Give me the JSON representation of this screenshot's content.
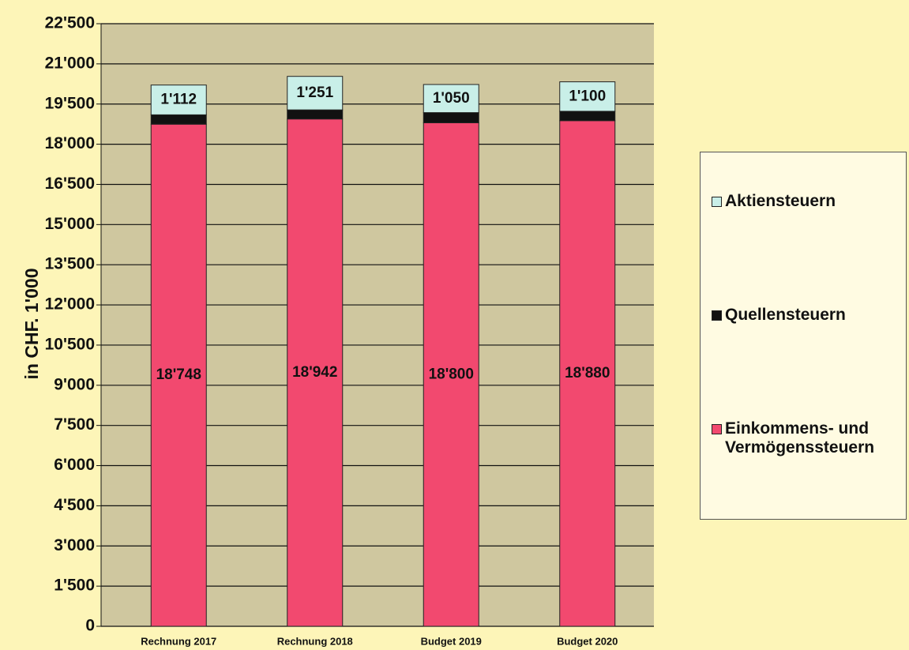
{
  "chart_data": {
    "type": "stacked_bar",
    "y_label": "in CHF. 1'000",
    "categories": [
      "Rechnung 2017",
      "Rechnung 2018",
      "Budget 2019",
      "Budget 2020"
    ],
    "series": [
      {
        "name": "Einkommens- und Vermögenssteuern",
        "color": "#f2496f",
        "values": [
          18748,
          18942,
          18800,
          18880
        ],
        "value_labels": [
          "18'748",
          "18'942",
          "18'800",
          "18'880"
        ]
      },
      {
        "name": "Quellensteuern",
        "color": "#111111",
        "values": [
          350,
          340,
          380,
          350
        ]
      },
      {
        "name": "Aktiensteuern",
        "color": "#c9efe8",
        "values": [
          1112,
          1251,
          1050,
          1100
        ],
        "value_labels": [
          "1'112",
          "1'251",
          "1'050",
          "1'100"
        ]
      }
    ],
    "ylim": [
      0,
      22500
    ],
    "yticks": [
      0,
      {
        "value": 1500,
        "label": "1'500"
      },
      {
        "value": 3000,
        "label": "3'000"
      },
      {
        "value": 4500,
        "label": "4'500"
      },
      {
        "value": 6000,
        "label": "6'000"
      },
      {
        "value": 7500,
        "label": "7'500"
      },
      {
        "value": 9000,
        "label": "9'000"
      },
      {
        "value": 10500,
        "label": "10'500"
      },
      {
        "value": 12000,
        "label": "12'000"
      },
      {
        "value": 13500,
        "label": "13'500"
      },
      {
        "value": 15000,
        "label": "15'000"
      },
      {
        "value": 16500,
        "label": "16'500"
      },
      {
        "value": 18000,
        "label": "18'000"
      },
      {
        "value": 19500,
        "label": "19'500"
      },
      {
        "value": 21000,
        "label": "21'000"
      },
      {
        "value": 22500,
        "label": "22'500"
      }
    ],
    "grid": true
  }
}
